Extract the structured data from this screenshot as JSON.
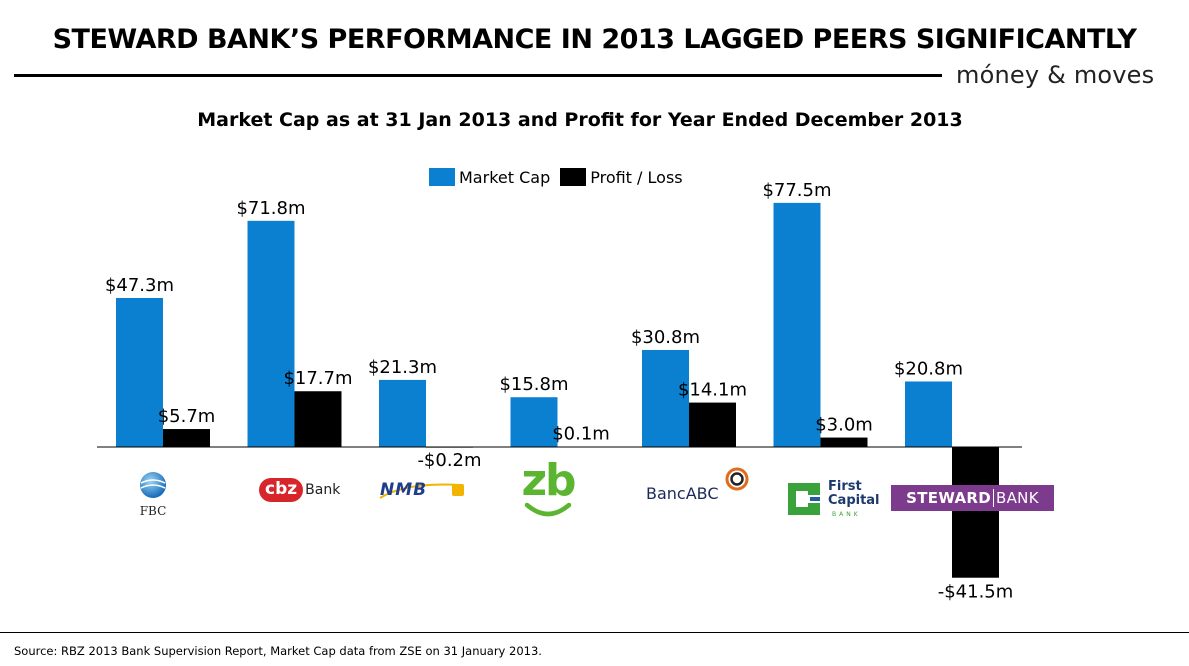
{
  "header": {
    "title": "STEWARD BANK’S PERFORMANCE IN 2013 LAGGED PEERS SIGNIFICANTLY",
    "brand": "móney & moves"
  },
  "footer": {
    "source": "Source: RBZ 2013 Bank Supervision Report, Market Cap data from ZSE on 31 January 2013."
  },
  "colors": {
    "market_cap": "#0c80d0",
    "profit_loss": "#000000",
    "axis": "#000000"
  },
  "logos": {
    "fbc": "FBC",
    "cbz_mark": "cbz",
    "cbz_text": "Bank",
    "nmb": "NMB",
    "zb": "zb",
    "bancabc": "BancABC",
    "firstcapital_line1": "First",
    "firstcapital_line2": "Capital",
    "firstcapital_line3": "BANK",
    "steward_a": "STEWARD",
    "steward_b": "BANK"
  },
  "chart_data": {
    "type": "bar",
    "title": "Market Cap as at 31 Jan 2013 and Profit for Year Ended December 2013",
    "xlabel": "",
    "ylabel": "",
    "categories": [
      "FBC",
      "CBZ Bank",
      "NMB",
      "ZB",
      "BancABC",
      "First Capital Bank",
      "Steward Bank"
    ],
    "series": [
      {
        "name": "Market Cap",
        "values": [
          47.3,
          71.8,
          21.3,
          15.8,
          30.8,
          77.5,
          20.8
        ],
        "labels": [
          "$47.3m",
          "$71.8m",
          "$21.3m",
          "$15.8m",
          "$30.8m",
          "$77.5m",
          "$20.8m"
        ]
      },
      {
        "name": "Profit / Loss",
        "values": [
          5.7,
          17.7,
          -0.2,
          0.1,
          14.1,
          3.0,
          -41.5
        ],
        "labels": [
          "$5.7m",
          "$17.7m",
          "-$0.2m",
          "$0.1m",
          "$14.1m",
          "$3.0m",
          "-$41.5m"
        ]
      }
    ],
    "legend_position": "top-center",
    "grid": false
  }
}
